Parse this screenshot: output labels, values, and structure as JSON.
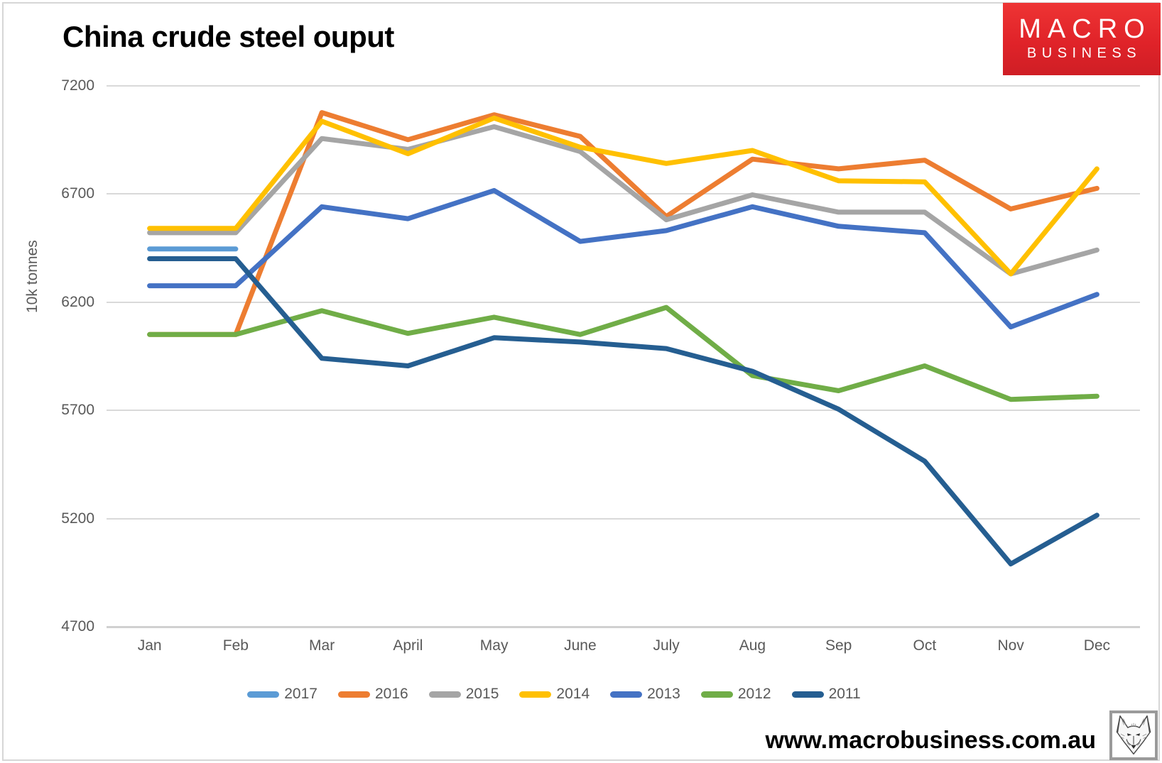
{
  "page": {
    "title": "China crude steel ouput",
    "footer_url": "www.macrobusiness.com.au",
    "logo": {
      "line1": "MACRO",
      "line2": "BUSINESS",
      "bg_color": "#e02329"
    },
    "fox_logo_alt": "fox-sketch-logo"
  },
  "chart_data": {
    "type": "line",
    "title": "China crude steel ouput",
    "xlabel": "",
    "ylabel": "10k tonnes",
    "ylim": [
      4700,
      7200
    ],
    "yticks": [
      7200,
      6700,
      6200,
      5700,
      5200,
      4700
    ],
    "grid": "horizontal-only",
    "legend_position": "bottom",
    "gridline_color": "#d9d9d9",
    "axis_text_color": "#595959",
    "categories": [
      "Jan",
      "Feb",
      "Mar",
      "April",
      "May",
      "June",
      "July",
      "Aug",
      "Sep",
      "Oct",
      "Nov",
      "Dec"
    ],
    "series": [
      {
        "name": "2017",
        "color": "#5B9BD5",
        "values": [
          6445,
          6445,
          null,
          null,
          null,
          null,
          null,
          null,
          null,
          null,
          null,
          null
        ]
      },
      {
        "name": "2016",
        "color": "#ED7D31",
        "values": [
          6050,
          6050,
          7075,
          6950,
          7065,
          6965,
          6595,
          6860,
          6815,
          6855,
          6630,
          6725
        ]
      },
      {
        "name": "2015",
        "color": "#A5A5A5",
        "values": [
          6520,
          6520,
          6955,
          6905,
          7010,
          6895,
          6580,
          6695,
          6615,
          6615,
          6330,
          6440
        ]
      },
      {
        "name": "2014",
        "color": "#FFC000",
        "values": [
          6540,
          6540,
          7035,
          6885,
          7050,
          6915,
          6840,
          6900,
          6760,
          6755,
          6330,
          6815
        ]
      },
      {
        "name": "2013",
        "color": "#4472C4",
        "values": [
          6275,
          6275,
          6640,
          6585,
          6715,
          6480,
          6530,
          6640,
          6550,
          6520,
          6085,
          6235
        ]
      },
      {
        "name": "2012",
        "color": "#70AD47",
        "values": [
          6050,
          6050,
          6160,
          6055,
          6130,
          6050,
          6175,
          5860,
          5790,
          5905,
          5750,
          5765
        ]
      },
      {
        "name": "2011",
        "color": "#255E91",
        "values": [
          6400,
          6400,
          5940,
          5905,
          6035,
          6015,
          5985,
          5880,
          5705,
          5465,
          4990,
          5215
        ]
      }
    ]
  }
}
